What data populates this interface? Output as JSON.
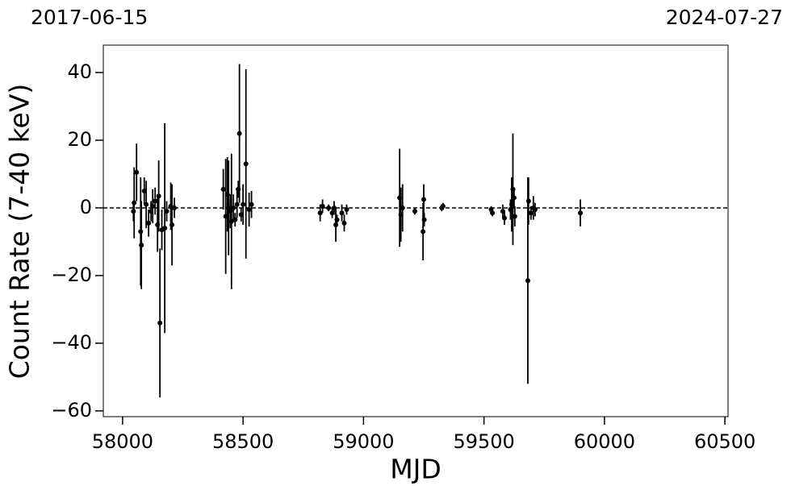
{
  "chart_data": {
    "type": "scatter",
    "top_left_label": "2017-06-15",
    "top_right_label": "2024-07-27",
    "xlabel": "MJD",
    "ylabel": "Count Rate (7-40 keV)",
    "xlim": [
      57920,
      60513
    ],
    "ylim": [
      -61.7,
      48.1
    ],
    "xticks": [
      58000,
      58500,
      59000,
      59500,
      60000,
      60500
    ],
    "yticks": [
      {
        "value": -60,
        "label": "−60"
      },
      {
        "value": -40,
        "label": "−40"
      },
      {
        "value": -20,
        "label": "−20"
      },
      0,
      20,
      40
    ],
    "hline": 0,
    "color": "#000000",
    "x": [
      58045,
      58048,
      58058,
      58075,
      58078,
      58090,
      58098,
      58108,
      58118,
      58125,
      58135,
      58145,
      58150,
      58155,
      58163,
      58175,
      58183,
      58200,
      58205,
      58215,
      58418,
      58428,
      58435,
      58440,
      58447,
      58452,
      58460,
      58467,
      58475,
      58480,
      58485,
      58492,
      58500,
      58512,
      58525,
      58535,
      58820,
      58830,
      58855,
      58870,
      58878,
      58885,
      58890,
      58910,
      58920,
      58930,
      59150,
      59155,
      59162,
      59213,
      59247,
      59250,
      59252,
      59325,
      59330,
      59530,
      59535,
      59578,
      59585,
      59610,
      59615,
      59620,
      59625,
      59628,
      59682,
      59685,
      59695,
      59705,
      59712,
      59900
    ],
    "values": [
      -1,
      1.5,
      10.5,
      -7,
      -11,
      5,
      1,
      -4.5,
      -1,
      0.5,
      2,
      -5,
      3.5,
      -34,
      -6.5,
      -6,
      -1,
      0.5,
      -5,
      0,
      5.5,
      -2.5,
      4,
      0,
      -1,
      -4,
      0,
      -3.5,
      1,
      5.5,
      22,
      -2,
      1,
      13,
      -0.5,
      1,
      -1.5,
      0.5,
      0,
      -1.5,
      0,
      -5,
      -3.5,
      -1.5,
      -4.5,
      -0.5,
      3,
      -2,
      0,
      -1,
      -7,
      2.5,
      -3.5,
      0,
      0.5,
      -0.5,
      -1.5,
      -1,
      -3,
      -0.5,
      1,
      5.5,
      3,
      -2.5,
      -21.5,
      2,
      -1.5,
      0,
      -0.5,
      -1.5
    ],
    "errors": [
      3,
      10.5,
      8.5,
      16,
      13,
      4,
      7,
      4,
      3,
      5,
      4,
      8,
      10.5,
      22,
      6,
      31,
      3,
      7,
      12,
      3,
      6,
      17,
      11,
      14,
      5,
      20,
      4,
      2,
      4,
      2.5,
      20.5,
      2,
      6,
      28,
      5,
      4,
      2.5,
      2,
      1,
      1.5,
      2,
      5,
      1.5,
      2.5,
      2.5,
      1.5,
      14.5,
      8,
      7,
      1,
      8.5,
      4.5,
      2,
      1,
      1,
      1,
      1,
      2,
      2,
      3,
      8,
      16.5,
      3,
      3,
      30.5,
      7,
      2,
      3.5,
      2,
      4
    ]
  }
}
